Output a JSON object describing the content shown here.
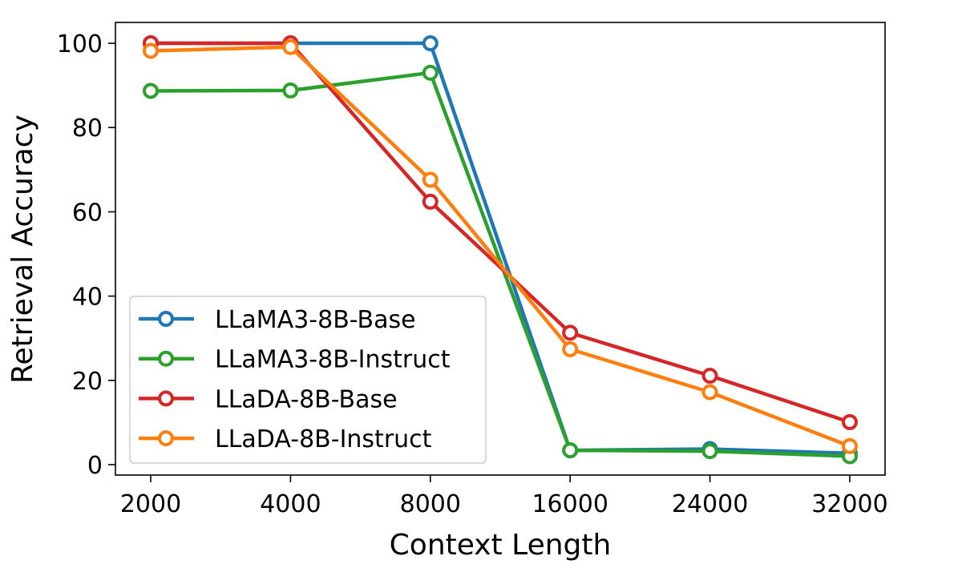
{
  "chart_data": {
    "type": "line",
    "title": "",
    "xlabel": "Context Length",
    "ylabel": "Retrieval Accuracy",
    "x": [
      "2000",
      "4000",
      "8000",
      "16000",
      "24000",
      "32000"
    ],
    "yticks": [
      0,
      20,
      40,
      60,
      80,
      100
    ],
    "ylim": [
      -2.5,
      105
    ],
    "grid": false,
    "legend_position": "lower-left",
    "marker": "hollow-circle",
    "series": [
      {
        "name": "LLaMA3-8B-Base",
        "color": "#1f77b4",
        "values": [
          100,
          100,
          100,
          3.4,
          3.7,
          2.7
        ]
      },
      {
        "name": "LLaMA3-8B-Instruct",
        "color": "#2ca02c",
        "values": [
          88.7,
          88.8,
          93.0,
          3.4,
          3.2,
          2.0
        ]
      },
      {
        "name": "LLaDA-8B-Base",
        "color": "#d62728",
        "values": [
          100,
          100,
          62.4,
          31.3,
          21.1,
          10.1
        ]
      },
      {
        "name": "LLaDA-8B-Instruct",
        "color": "#ff7f0e",
        "values": [
          98.2,
          99.1,
          67.6,
          27.4,
          17.2,
          4.4
        ]
      }
    ]
  }
}
